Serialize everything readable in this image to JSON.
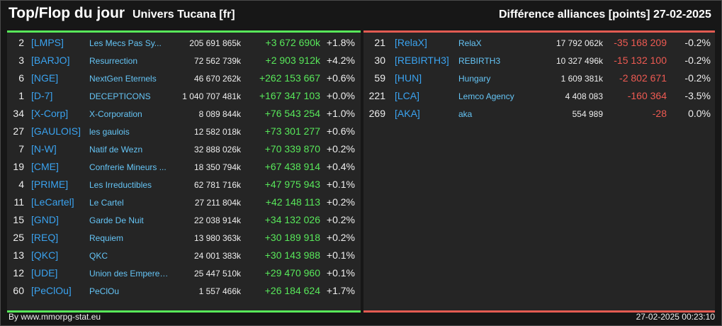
{
  "header": {
    "title": "Top/Flop du jour",
    "universe": "Univers Tucana [fr]",
    "diff_label": "Différence alliances [points]",
    "date": "27-02-2025"
  },
  "top": [
    {
      "rank": "2",
      "tag": "[LMPS]",
      "name": "Les Mecs Pas Sy...",
      "points": "205 691 865k",
      "diff": "+3 672 690k",
      "pct": "+1.8%"
    },
    {
      "rank": "3",
      "tag": "[BARJO]",
      "name": "Resurrection",
      "points": "72 562 739k",
      "diff": "+2 903 912k",
      "pct": "+4.2%"
    },
    {
      "rank": "6",
      "tag": "[NGE]",
      "name": "NextGen Eternels",
      "points": "46 670 262k",
      "diff": "+262 153 667",
      "pct": "+0.6%"
    },
    {
      "rank": "1",
      "tag": "[D-7]",
      "name": "DECEPTICONS",
      "points": "1 040 707 481k",
      "diff": "+167 347 103",
      "pct": "+0.0%"
    },
    {
      "rank": "34",
      "tag": "[X-Corp]",
      "name": "X-Corporation",
      "points": "8 089 844k",
      "diff": "+76 543 254",
      "pct": "+1.0%"
    },
    {
      "rank": "27",
      "tag": "[GAULOIS]",
      "name": "les gaulois",
      "points": "12 582 018k",
      "diff": "+73 301 277",
      "pct": "+0.6%"
    },
    {
      "rank": "7",
      "tag": "[N-W]",
      "name": "Natif de Wezn",
      "points": "32 888 026k",
      "diff": "+70 339 870",
      "pct": "+0.2%"
    },
    {
      "rank": "19",
      "tag": "[CME]",
      "name": "Confrerie Mineurs ...",
      "points": "18 350 794k",
      "diff": "+67 438 914",
      "pct": "+0.4%"
    },
    {
      "rank": "4",
      "tag": "[PRIME]",
      "name": "Les Irreductibles",
      "points": "62 781 716k",
      "diff": "+47 975 943",
      "pct": "+0.1%"
    },
    {
      "rank": "11",
      "tag": "[LeCartel]",
      "name": "Le Cartel",
      "points": "27 211 804k",
      "diff": "+42 148 113",
      "pct": "+0.2%"
    },
    {
      "rank": "15",
      "tag": "[GND]",
      "name": "Garde De Nuit",
      "points": "22 038 914k",
      "diff": "+34 132 026",
      "pct": "+0.2%"
    },
    {
      "rank": "25",
      "tag": "[REQ]",
      "name": "Requiem",
      "points": "13 980 363k",
      "diff": "+30 189 918",
      "pct": "+0.2%"
    },
    {
      "rank": "13",
      "tag": "[QKC]",
      "name": "QKC",
      "points": "24 001 383k",
      "diff": "+30 143 988",
      "pct": "+0.1%"
    },
    {
      "rank": "12",
      "tag": "[UDE]",
      "name": "Union des Empereur...",
      "points": "25 447 510k",
      "diff": "+29 470 960",
      "pct": "+0.1%"
    },
    {
      "rank": "60",
      "tag": "[PeClOu]",
      "name": "PeClOu",
      "points": "1 557 466k",
      "diff": "+26 184 624",
      "pct": "+1.7%"
    }
  ],
  "flop": [
    {
      "rank": "21",
      "tag": "[RelaX]",
      "name": "RelaX",
      "points": "17 792 062k",
      "diff": "-35 168 209",
      "pct": "-0.2%"
    },
    {
      "rank": "30",
      "tag": "[REBIRTH3]",
      "name": "REBIRTH3",
      "points": "10 327 496k",
      "diff": "-15 132 100",
      "pct": "-0.2%"
    },
    {
      "rank": "59",
      "tag": "[HUN]",
      "name": "Hungary",
      "points": "1 609 381k",
      "diff": "-2 802 671",
      "pct": "-0.2%"
    },
    {
      "rank": "221",
      "tag": "[LCA]",
      "name": "Lemco Agency",
      "points": "4 408 083",
      "diff": "-160 364",
      "pct": "-3.5%"
    },
    {
      "rank": "269",
      "tag": "[AKA]",
      "name": "aka",
      "points": "554 989",
      "diff": "-28",
      "pct": "0.0%"
    }
  ],
  "footer": {
    "source": "By www.mmorpg-stat.eu",
    "timestamp": "27-02-2025 00:23:10"
  },
  "colors": {
    "top_accent": "#58e85a",
    "flop_accent": "#ee5a52",
    "tag": "#3aa3f0",
    "name": "#65c4f5"
  }
}
